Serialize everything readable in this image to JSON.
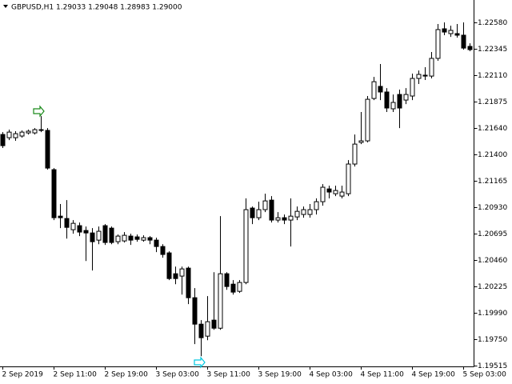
{
  "chart_data": {
    "type": "candlestick",
    "title": "GBPUSD,H1  1.29033 1.29048 1.28983 1.29000",
    "categories": [
      "2 Sep 2019",
      null,
      null,
      null,
      null,
      null,
      null,
      null,
      "2 Sep 11:00",
      null,
      null,
      null,
      null,
      null,
      null,
      null,
      "2 Sep 19:00",
      null,
      null,
      null,
      null,
      null,
      null,
      null,
      "3 Sep 03:00",
      null,
      null,
      null,
      null,
      null,
      null,
      null,
      "3 Sep 11:00",
      null,
      null,
      null,
      null,
      null,
      null,
      null,
      "3 Sep 19:00",
      null,
      null,
      null,
      null,
      null,
      null,
      null,
      "4 Sep 03:00",
      null,
      null,
      null,
      null,
      null,
      null,
      null,
      "4 Sep 11:00",
      null,
      null,
      null,
      null,
      null,
      null,
      null,
      "4 Sep 19:00",
      null,
      null,
      null,
      null,
      null,
      null,
      null,
      "5 Sep 03:00",
      null
    ],
    "open": [
      1.2158,
      1.21551,
      1.21551,
      1.21566,
      1.21594,
      1.21594,
      1.21623,
      1.21616,
      1.21266,
      1.20851,
      1.2083,
      1.2073,
      1.20766,
      1.20723,
      1.20701,
      1.20637,
      1.20766,
      1.20744,
      1.20623,
      1.2063,
      1.20673,
      1.20666,
      1.20637,
      1.20659,
      1.20637,
      1.2058,
      1.20523,
      1.20337,
      1.20316,
      1.20387,
      1.20123,
      1.19887,
      1.1978,
      1.19923,
      1.19851,
      1.20337,
      1.20244,
      1.2018,
      1.20259,
      1.20923,
      1.20837,
      1.20909,
      1.20994,
      1.20816,
      1.20837,
      1.20816,
      1.20844,
      1.20866,
      1.20866,
      1.20909,
      1.2098,
      1.21094,
      1.21051,
      1.2103,
      1.21051,
      1.21316,
      1.21509,
      1.21523,
      1.21901,
      1.22009,
      1.21959,
      1.21809,
      1.21937,
      1.21887,
      1.21923,
      1.2208,
      1.22109,
      1.22101,
      1.22259,
      1.22523,
      1.2248,
      1.2248,
      1.22466,
      1.22366
    ],
    "high": [
      1.21601,
      1.21623,
      1.21609,
      1.21616,
      1.21623,
      1.21637,
      1.21744,
      1.21637,
      1.2128,
      1.20959,
      1.20994,
      1.20816,
      1.20794,
      1.20759,
      1.20744,
      1.20759,
      1.2078,
      1.20759,
      1.20687,
      1.20709,
      1.20694,
      1.20687,
      1.2068,
      1.20673,
      1.20659,
      1.20601,
      1.20537,
      1.20401,
      1.20401,
      1.20401,
      1.20209,
      1.19923,
      1.20137,
      1.20351,
      1.20851,
      1.20351,
      1.2028,
      1.2028,
      1.21009,
      1.20937,
      1.2098,
      1.21051,
      1.2103,
      1.20887,
      1.20866,
      1.21009,
      1.20937,
      1.20937,
      1.20959,
      1.21009,
      1.21137,
      1.21123,
      1.21123,
      1.21123,
      1.21351,
      1.2158,
      1.2178,
      1.21923,
      1.22094,
      1.22209,
      1.21994,
      1.21937,
      1.2198,
      1.21994,
      1.22123,
      1.22151,
      1.2218,
      1.22316,
      1.22566,
      1.2258,
      1.22551,
      1.22566,
      1.2258,
      1.22394
    ],
    "low": [
      1.21459,
      1.2153,
      1.21523,
      1.21551,
      1.2158,
      1.2158,
      1.21601,
      1.21266,
      1.20816,
      1.20744,
      1.20651,
      1.20694,
      1.20673,
      1.20451,
      1.20366,
      1.20601,
      1.20594,
      1.20601,
      1.20601,
      1.20616,
      1.20594,
      1.20623,
      1.20623,
      1.20601,
      1.2053,
      1.2048,
      1.2028,
      1.20244,
      1.20151,
      1.20066,
      1.19709,
      1.19601,
      1.19744,
      1.19837,
      1.19837,
      1.20194,
      1.20151,
      1.20166,
      1.20244,
      1.2078,
      1.20816,
      1.20887,
      1.20794,
      1.20794,
      1.2078,
      1.2058,
      1.20816,
      1.20837,
      1.20837,
      1.20866,
      1.20944,
      1.21009,
      1.2103,
      1.21009,
      1.2103,
      1.21294,
      1.21494,
      1.21509,
      1.21887,
      1.21887,
      1.2178,
      1.2178,
      1.21637,
      1.21851,
      1.21887,
      1.2203,
      1.22066,
      1.2208,
      1.22237,
      1.22466,
      1.22451,
      1.22444,
      1.22337,
      1.22323
    ],
    "close": [
      1.2148,
      1.21601,
      1.21587,
      1.21601,
      1.21609,
      1.21623,
      1.21616,
      1.2128,
      1.20837,
      1.20837,
      1.20751,
      1.20787,
      1.20709,
      1.20701,
      1.20623,
      1.20716,
      1.20616,
      1.20616,
      1.20673,
      1.2068,
      1.20637,
      1.20644,
      1.20659,
      1.20637,
      1.2058,
      1.20509,
      1.20294,
      1.20294,
      1.2038,
      1.20123,
      1.19887,
      1.19766,
      1.19909,
      1.19851,
      1.20337,
      1.20223,
      1.20173,
      1.20259,
      1.20909,
      1.20837,
      1.20909,
      1.20987,
      1.20816,
      1.20837,
      1.20816,
      1.20851,
      1.20894,
      1.20909,
      1.20909,
      1.2098,
      1.21109,
      1.21066,
      1.2108,
      1.21066,
      1.21316,
      1.21494,
      1.21523,
      1.21894,
      1.22051,
      1.21959,
      1.21816,
      1.21866,
      1.21816,
      1.21937,
      1.2208,
      1.22116,
      1.22101,
      1.22259,
      1.22516,
      1.22494,
      1.22509,
      1.22466,
      1.22351,
      1.22337
    ],
    "ylim": [
      1.1951,
      1.2278
    ],
    "yticks": [
      {
        "value": 1.2258,
        "label": "1.22580"
      },
      1.22345,
      {
        "value": 1.2211,
        "label": "1.22110"
      },
      1.21875,
      {
        "value": 1.2164,
        "label": "1.21640"
      },
      {
        "value": 1.214,
        "label": "1.21400"
      },
      1.21165,
      {
        "value": 1.2093,
        "label": "1.20930"
      },
      1.20695,
      {
        "value": 1.2046,
        "label": "1.20460"
      },
      1.20225,
      {
        "value": 1.1999,
        "label": "1.19990"
      },
      {
        "value": 1.1975,
        "label": "1.19750"
      },
      1.19515
    ],
    "up_color": "#ffffff",
    "down_color": "#000000",
    "wick_color": "#000000"
  }
}
